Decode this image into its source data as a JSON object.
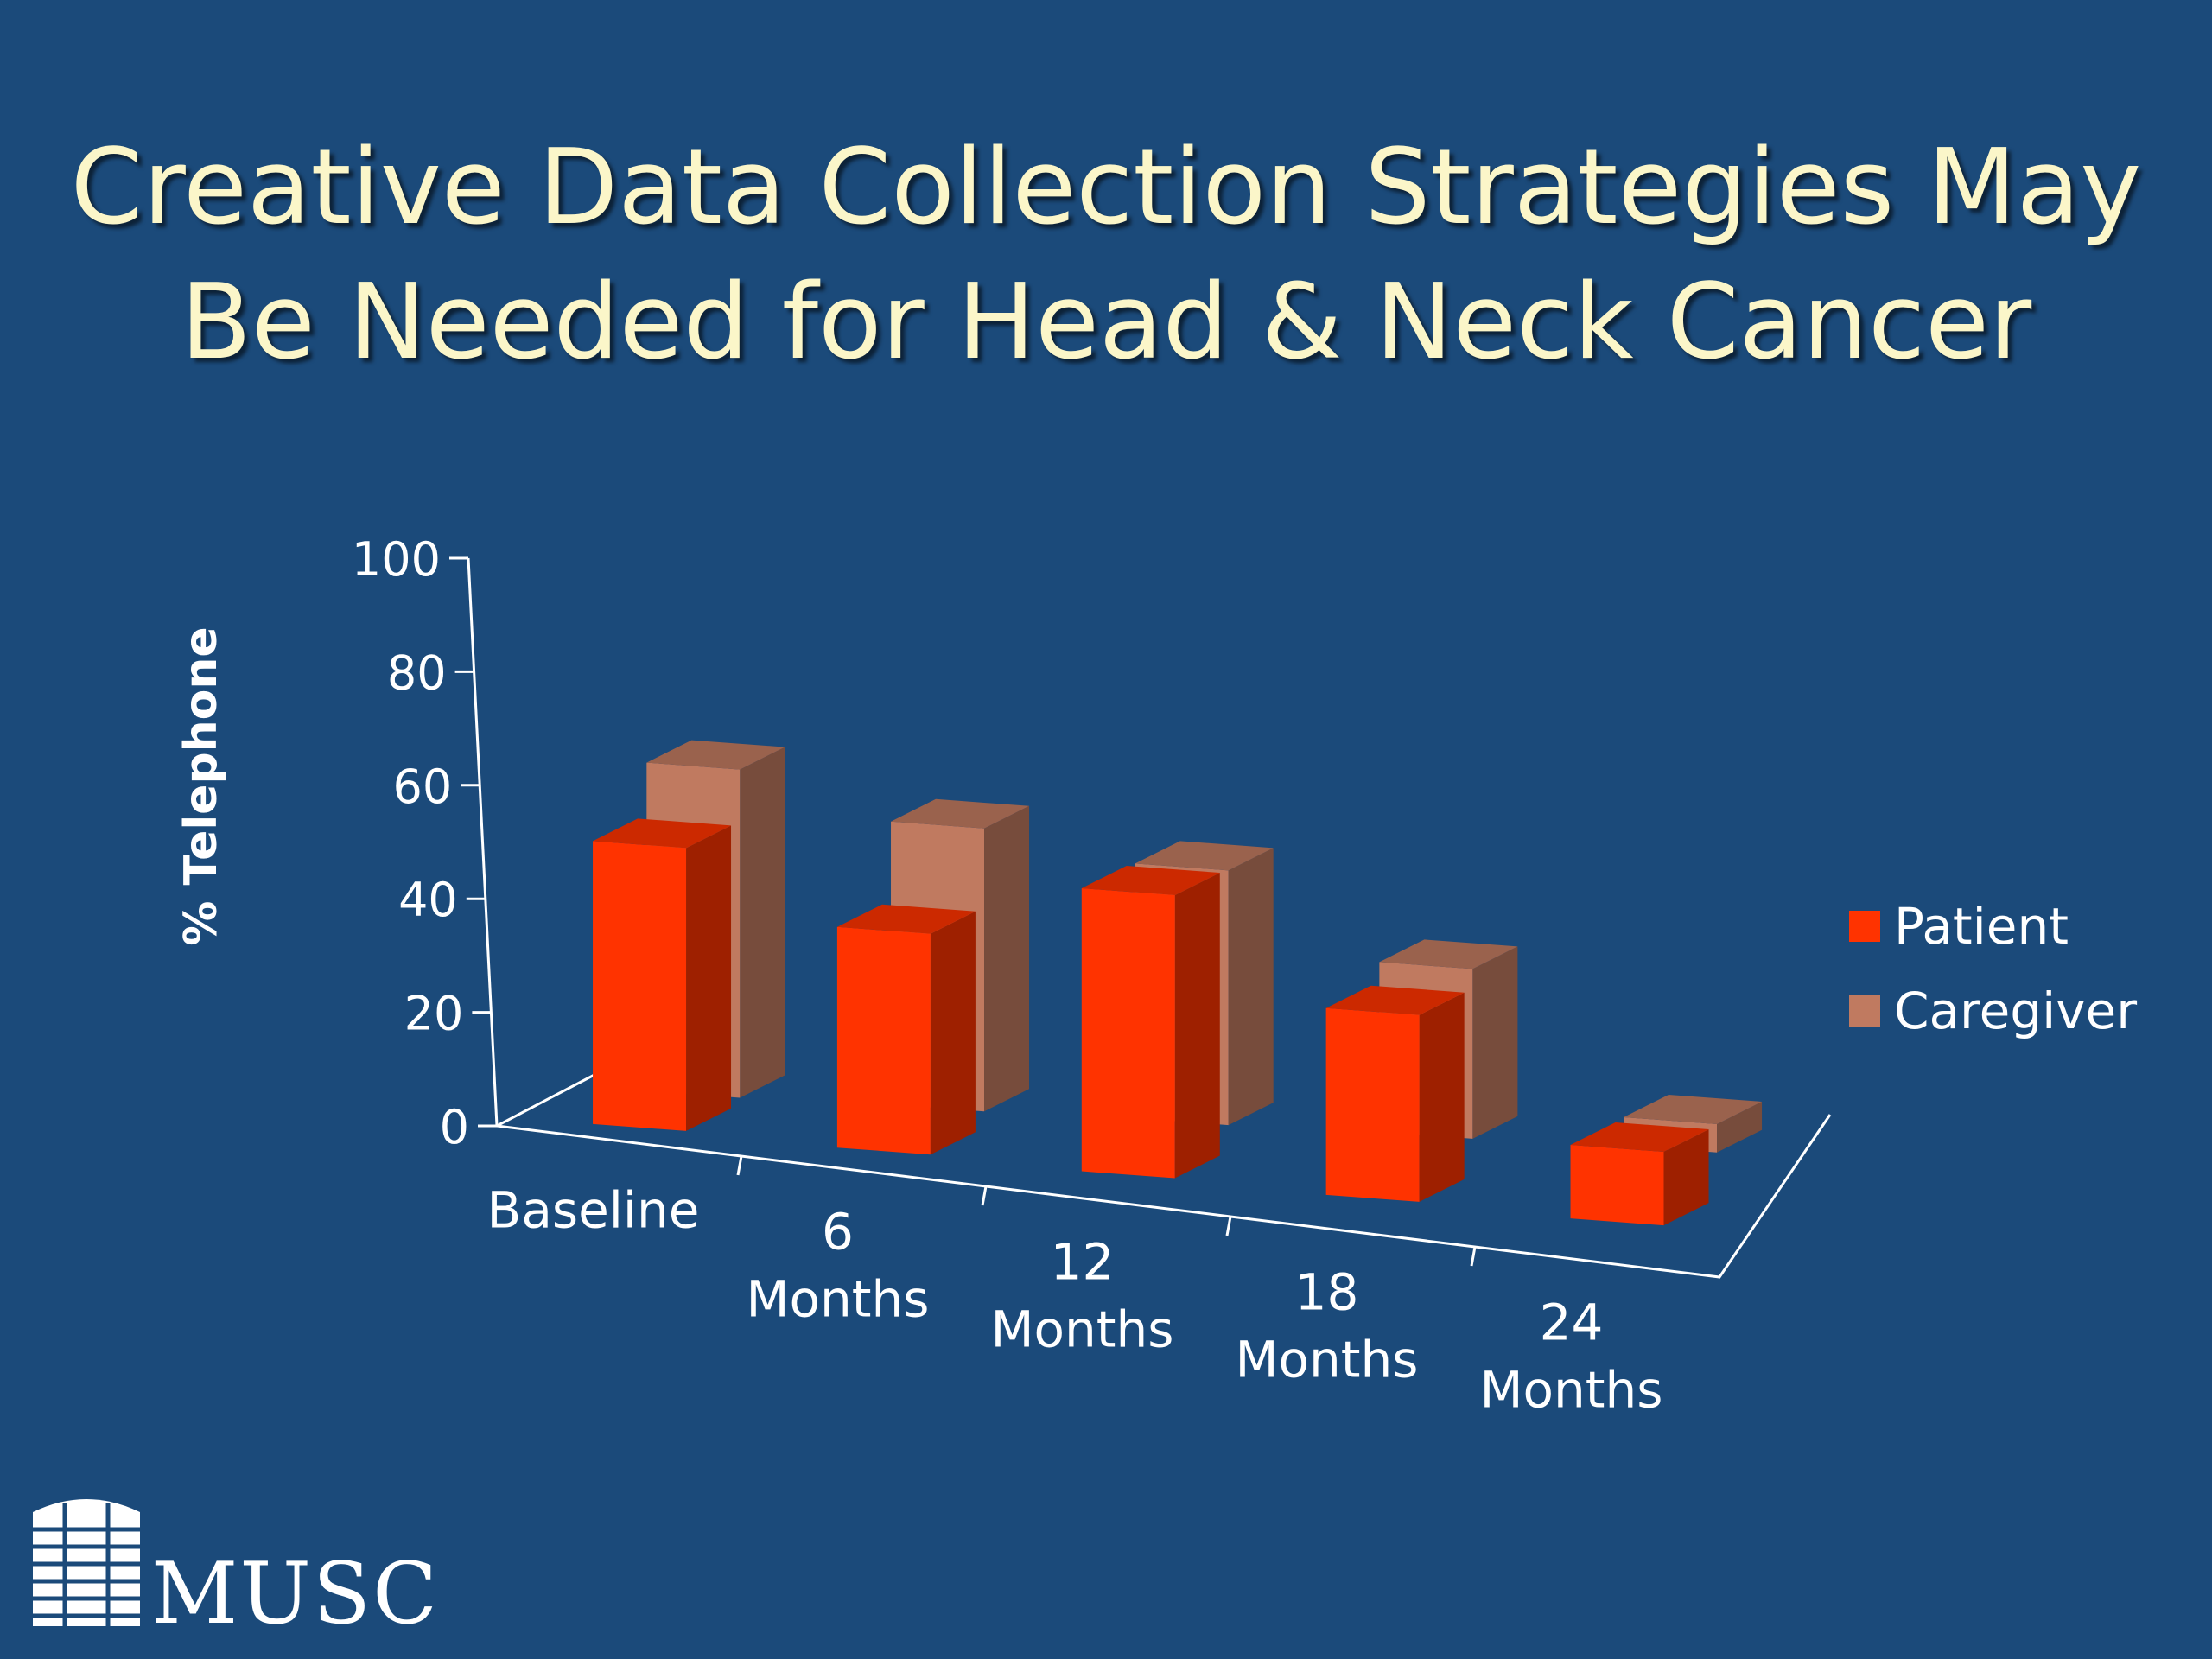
{
  "title": {
    "line1": "Creative Data Collection Strategies May",
    "line2": "Be Needed for Head & Neck Cancer"
  },
  "chart_data": {
    "type": "bar",
    "ylabel": "% Telephone",
    "ylim": [
      0,
      100
    ],
    "yticks": [
      0,
      20,
      40,
      60,
      80,
      100
    ],
    "categories": [
      [
        "Baseline"
      ],
      [
        "6",
        "Months"
      ],
      [
        "12",
        "Months"
      ],
      [
        "18",
        "Months"
      ],
      [
        "24",
        "Months"
      ]
    ],
    "series": [
      {
        "name": "Patient",
        "values": [
          50,
          39,
          50,
          33,
          13
        ],
        "color": "#ff3300"
      },
      {
        "name": "Caregiver",
        "values": [
          58,
          50,
          45,
          30,
          5
        ],
        "color": "#c07a60"
      }
    ],
    "legend": "right",
    "grid": false,
    "style": "3d-clustered"
  },
  "logo": {
    "text": "MUSC",
    "icon": "building-logo-icon"
  }
}
